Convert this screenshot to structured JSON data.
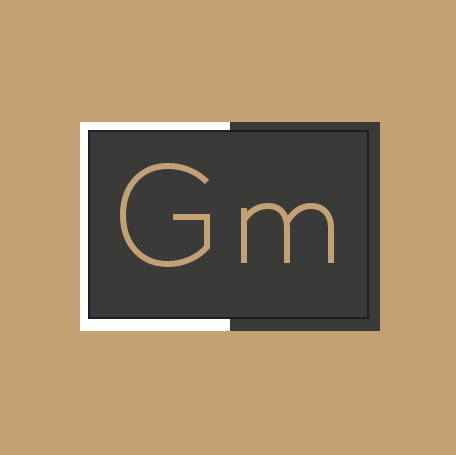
{
  "logo": {
    "monogram": "Gm",
    "colors": {
      "background": "#c3a173",
      "frame_light": "#ffffff",
      "frame_dark": "#3a3a39",
      "inner_border": "#1f1f1f",
      "monogram": "#c3a173"
    }
  }
}
